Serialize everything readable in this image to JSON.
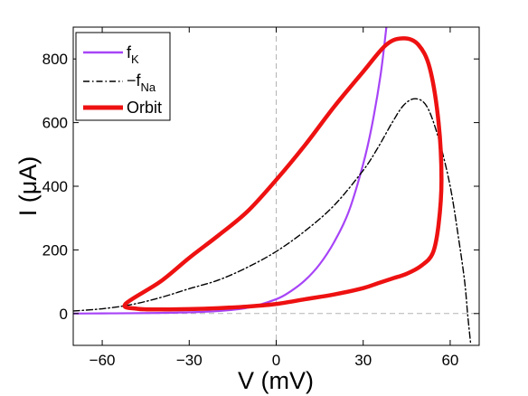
{
  "chart_data": {
    "type": "line",
    "xlabel": "V (mV)",
    "ylabel": "I (μA)",
    "xlim": [
      -70,
      70
    ],
    "ylim": [
      -100,
      900
    ],
    "x_ticks": [
      -60,
      -30,
      0,
      30,
      60
    ],
    "x_tick_labels": [
      "−60",
      "−30",
      "0",
      "30",
      "60"
    ],
    "y_ticks": [
      0,
      200,
      400,
      600,
      800
    ],
    "y_tick_labels": [
      "0",
      "200",
      "400",
      "600",
      "800"
    ],
    "grid": false,
    "reference_lines": {
      "x": 0,
      "y": 0
    },
    "legend": {
      "placement": "top-left",
      "entries": [
        {
          "text": "f",
          "sub": "K"
        },
        {
          "text": "−f",
          "sub": "Na"
        },
        {
          "text": "Orbit",
          "sub": ""
        }
      ]
    },
    "series": [
      {
        "color": "#a744f7",
        "dash": "solid",
        "x": [
          -70,
          -60,
          -50,
          -40,
          -30,
          -20,
          -10,
          0,
          5,
          10,
          15,
          20,
          25,
          30,
          33,
          36,
          38
        ],
        "y": [
          0,
          0.5,
          1,
          2,
          4,
          8,
          18,
          45,
          70,
          105,
          155,
          225,
          320,
          470,
          590,
          750,
          900
        ]
      },
      {
        "color": "#000000",
        "dash": "dashdot",
        "x": [
          -70,
          -60,
          -50,
          -40,
          -30,
          -20,
          -10,
          0,
          10,
          20,
          30,
          35,
          40,
          44,
          48,
          52,
          56,
          60,
          63,
          65,
          66,
          67
        ],
        "y": [
          8,
          15,
          28,
          50,
          78,
          105,
          145,
          195,
          260,
          340,
          450,
          520,
          600,
          655,
          675,
          650,
          550,
          400,
          230,
          100,
          0,
          -90
        ]
      },
      {
        "color": "#ee1111",
        "dash": "solid",
        "closed": true,
        "x": [
          -52,
          -40,
          -30,
          -20,
          -10,
          0,
          10,
          20,
          30,
          38,
          44,
          49,
          53,
          56,
          57,
          56,
          54,
          50,
          45,
          40,
          35,
          30,
          20,
          10,
          0,
          -10,
          -20,
          -30,
          -40,
          -48,
          -52
        ],
        "y": [
          30,
          100,
          175,
          245,
          320,
          420,
          530,
          650,
          760,
          845,
          865,
          845,
          770,
          600,
          420,
          280,
          190,
          150,
          125,
          110,
          95,
          80,
          60,
          45,
          30,
          22,
          17,
          14,
          13,
          15,
          30
        ]
      }
    ]
  }
}
